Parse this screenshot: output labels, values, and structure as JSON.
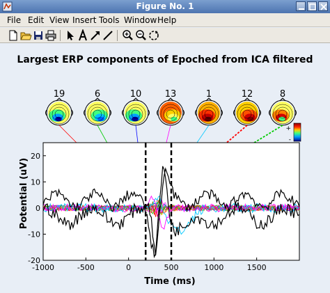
{
  "window": {
    "title": "Figure No. 1"
  },
  "menu": [
    "File",
    "Edit",
    "View",
    "Insert",
    "Tools",
    "Window",
    "Help"
  ],
  "toolbar": [
    "new-file",
    "open-folder",
    "save",
    "print",
    "arrow",
    "text-tool",
    "draw-arrow",
    "draw-line",
    "zoom-in",
    "zoom-out",
    "rotate"
  ],
  "figure_title": "Largest ERP components of Epoched from ICA filtered",
  "colorbar_labels": {
    "top": "+",
    "bottom": "-"
  },
  "components": [
    {
      "label": "19",
      "color": "#ff0000"
    },
    {
      "label": "6",
      "color": "#00cc00"
    },
    {
      "label": "10",
      "color": "#0000ff"
    },
    {
      "label": "13",
      "color": "#ff00ff"
    },
    {
      "label": "1",
      "color": "#00c8ff"
    },
    {
      "label": "12",
      "color": "#ff0000"
    },
    {
      "label": "8",
      "color": "#00cc00"
    }
  ],
  "chart_data": {
    "type": "line",
    "xlabel": "Time (ms)",
    "ylabel": "Potential (uV)",
    "xlim": [
      -1000,
      2000
    ],
    "ylim": [
      -20,
      25
    ],
    "xticks": [
      -1000,
      -500,
      0,
      500,
      1000,
      1500
    ],
    "yticks": [
      -20,
      -10,
      0,
      10,
      20
    ],
    "markers_ms": [
      200,
      500
    ],
    "grid": false
  }
}
